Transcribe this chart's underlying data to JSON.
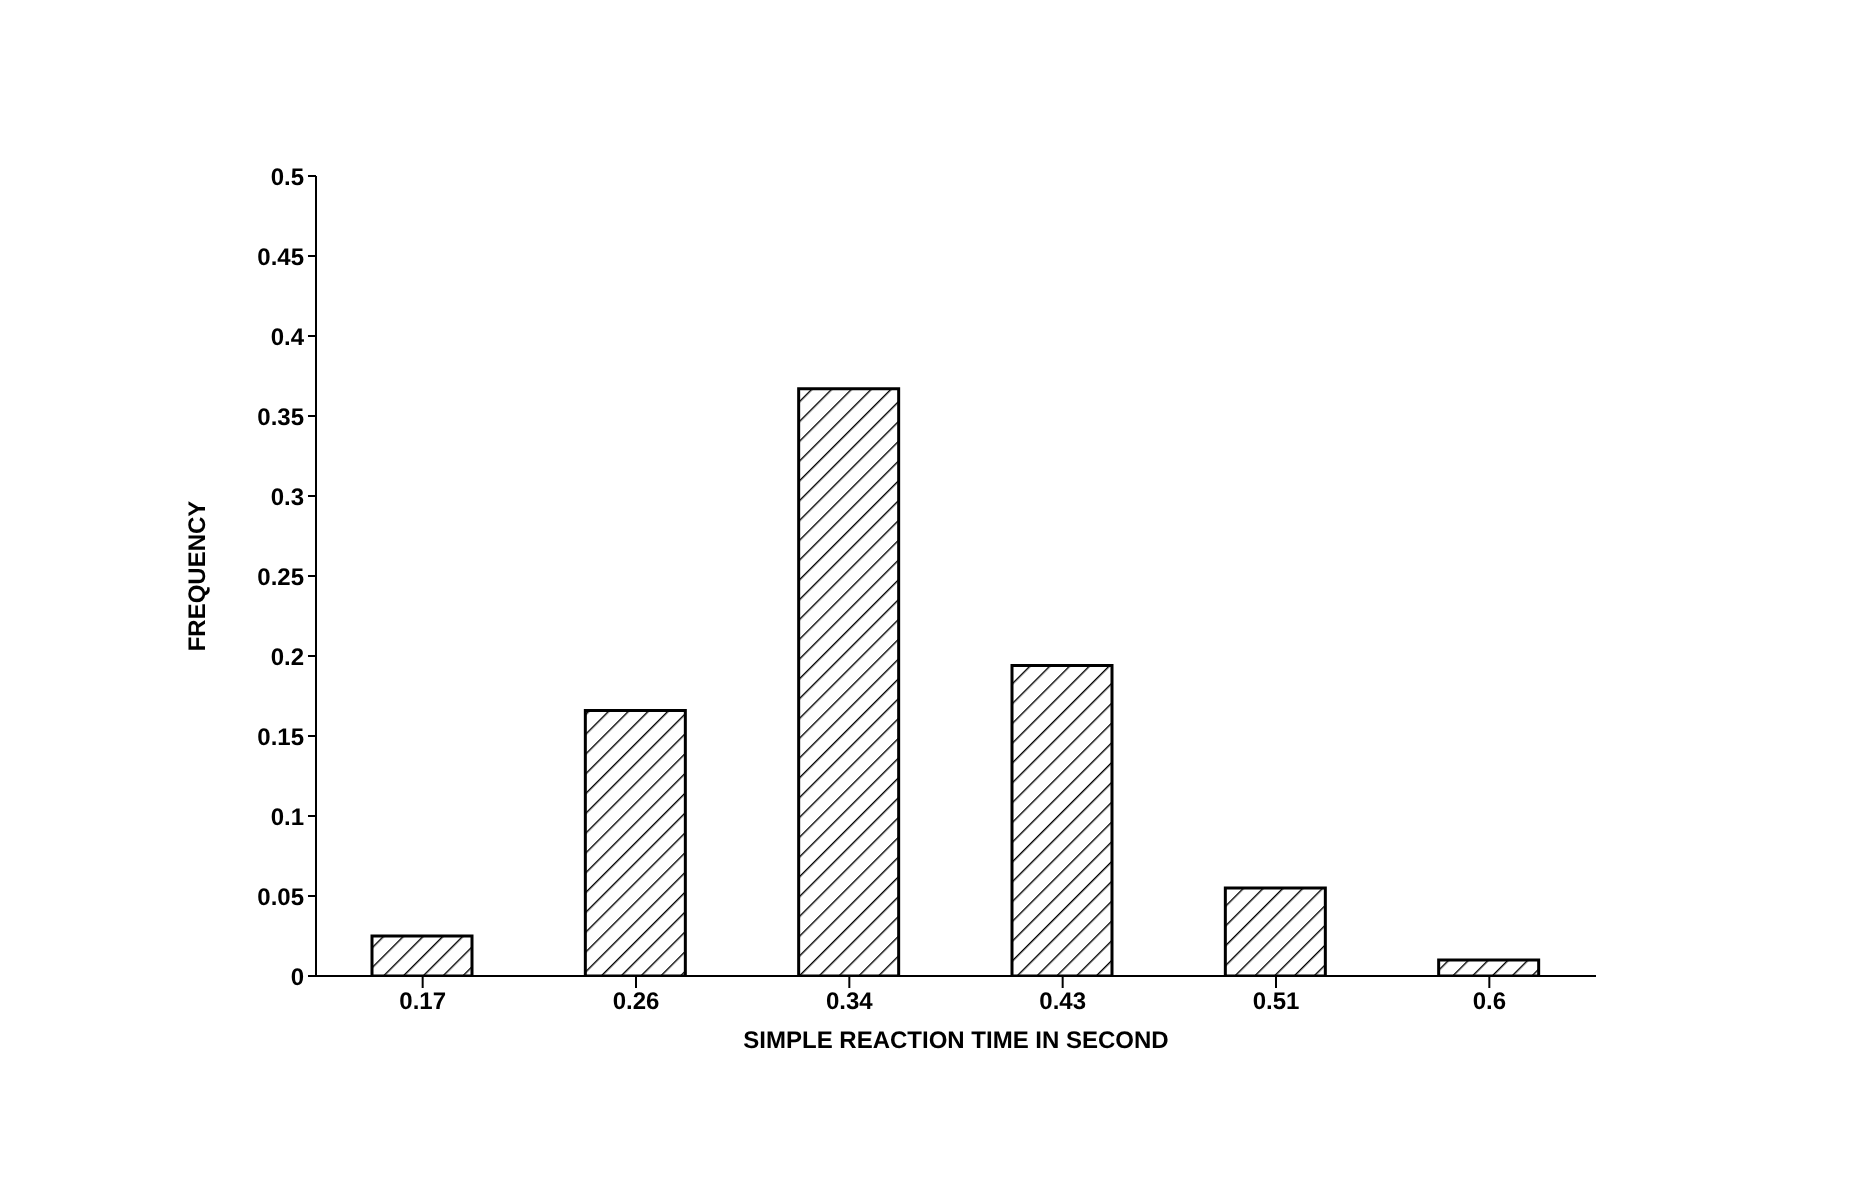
{
  "chart_data": {
    "type": "bar",
    "categories": [
      "0.17",
      "0.26",
      "0.34",
      "0.43",
      "0.51",
      "0.6"
    ],
    "values": [
      0.025,
      0.166,
      0.367,
      0.194,
      0.055,
      0.01
    ],
    "color": "#000000",
    "xlabel": "SIMPLE REACTION TIME IN SECOND",
    "ylabel": "FREQUENCY",
    "ylim": [
      0,
      0.5
    ],
    "yticks": [
      0,
      0.05,
      0.1,
      0.15,
      0.2,
      0.25,
      0.3,
      0.35,
      0.4,
      0.45,
      0.5
    ],
    "grid": false
  }
}
